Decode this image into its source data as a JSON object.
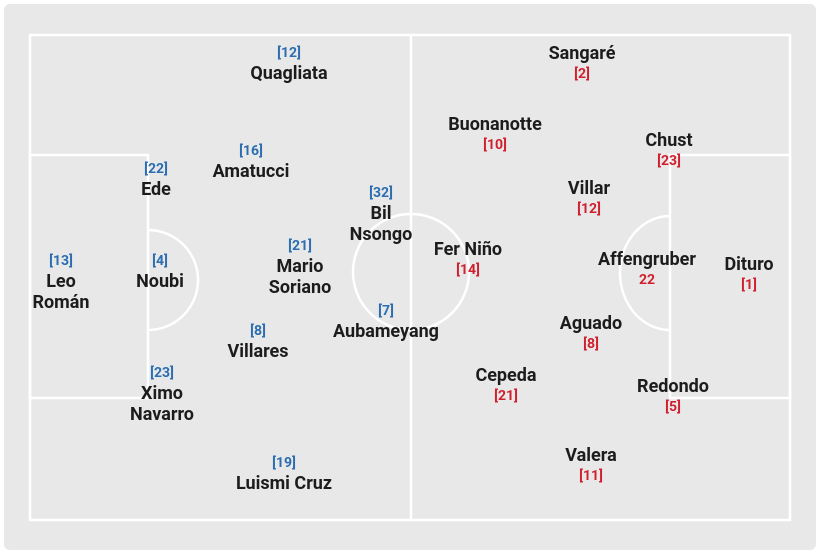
{
  "home": {
    "players": [
      {
        "number": "[12]",
        "name": "Quagliata"
      },
      {
        "number": "[16]",
        "name": "Amatucci"
      },
      {
        "number": "[22]",
        "name": "Ede"
      },
      {
        "number": "[32]",
        "name": "Bil Nsongo"
      },
      {
        "number": "[13]",
        "name": "Leo Román"
      },
      {
        "number": "[4]",
        "name": "Noubi"
      },
      {
        "number": "[21]",
        "name": "Mario Soriano"
      },
      {
        "number": "[7]",
        "name": "Aubameyang"
      },
      {
        "number": "[8]",
        "name": "Villares"
      },
      {
        "number": "[23]",
        "name": "Ximo Navarro"
      },
      {
        "number": "[19]",
        "name": "Luismi Cruz"
      }
    ]
  },
  "away": {
    "players": [
      {
        "name": "Sangaré",
        "number": "[2]"
      },
      {
        "name": "Buonanotte",
        "number": "[10]"
      },
      {
        "name": "Chust",
        "number": "[23]"
      },
      {
        "name": "Villar",
        "number": "[12]"
      },
      {
        "name": "Fer Niño",
        "number": "[14]"
      },
      {
        "name": "Affengruber",
        "number": "22"
      },
      {
        "name": "Dituro",
        "number": "[1]"
      },
      {
        "name": "Aguado",
        "number": "[8]"
      },
      {
        "name": "Cepeda",
        "number": "[21]"
      },
      {
        "name": "Redondo",
        "number": "[5]"
      },
      {
        "name": "Valera",
        "number": "[11]"
      }
    ]
  }
}
